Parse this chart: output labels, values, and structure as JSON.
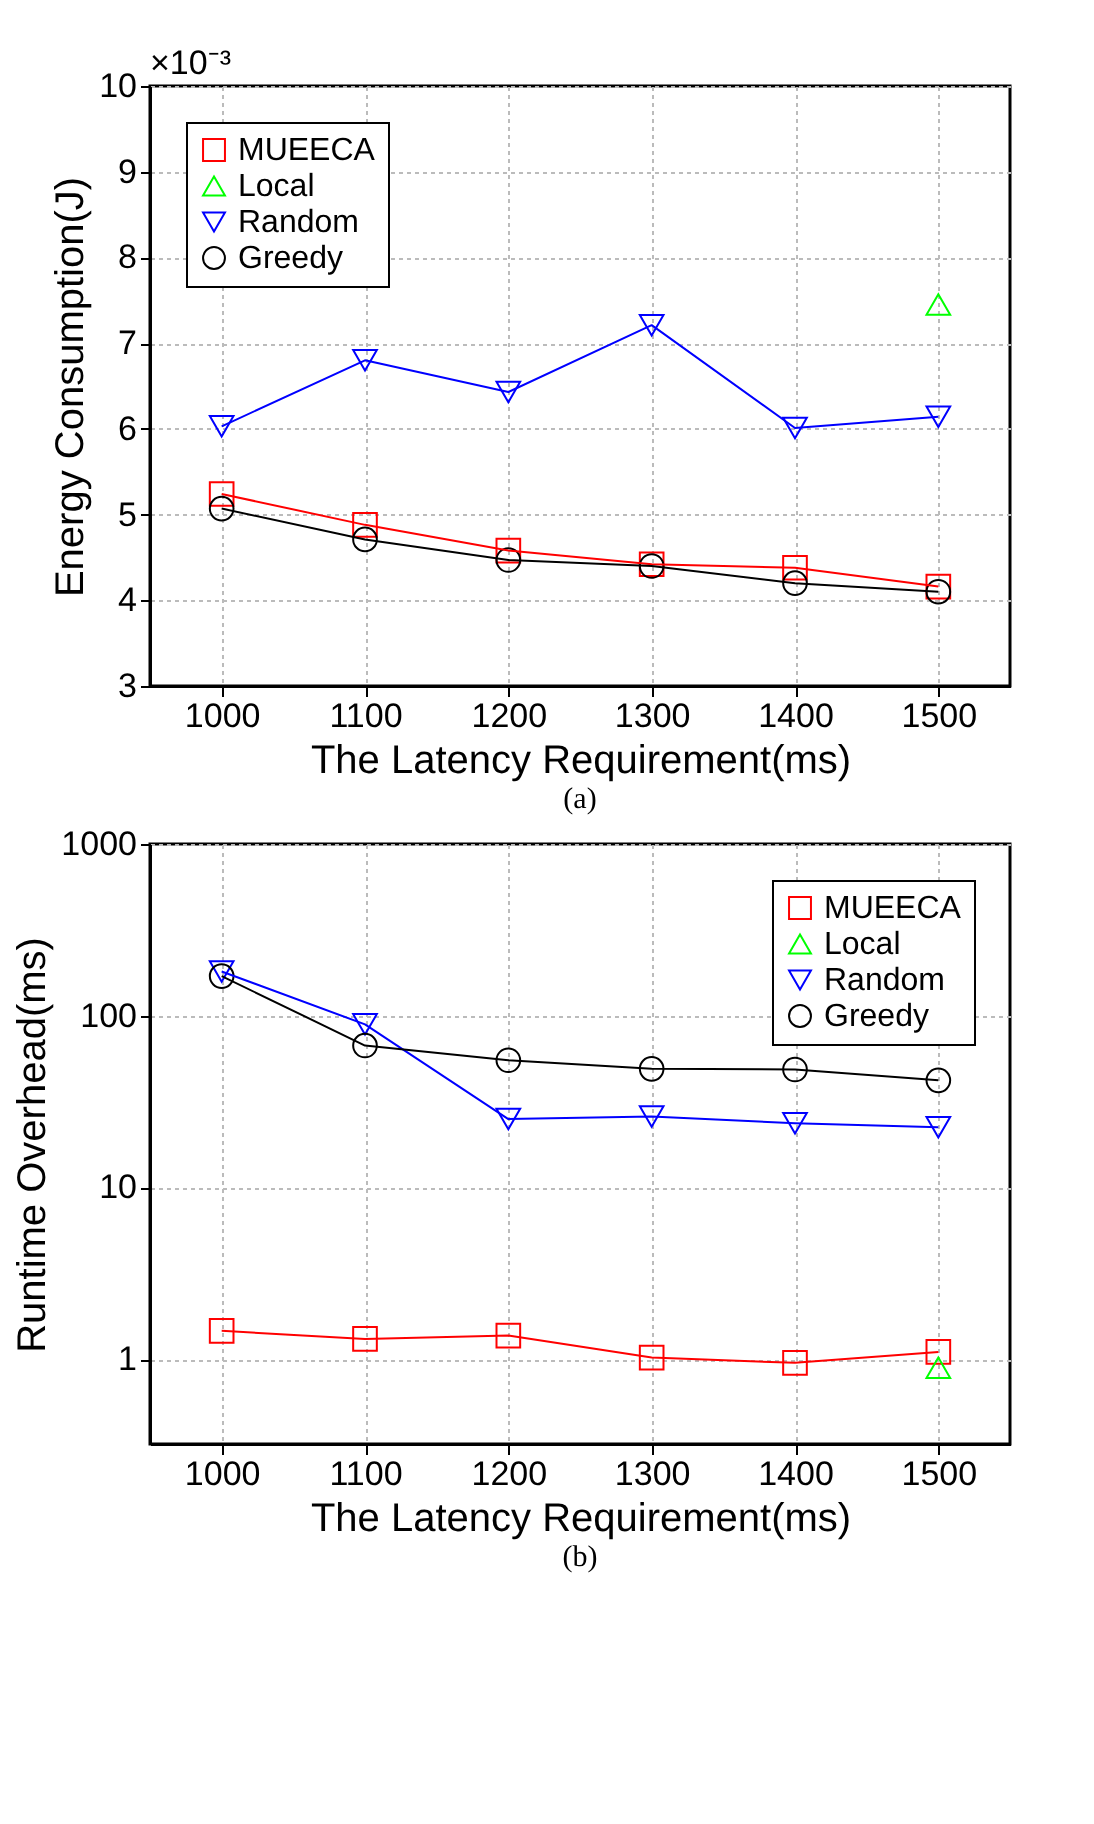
{
  "chart_data": [
    {
      "type": "line",
      "xlabel": "The Latency Requirement(ms)",
      "ylabel": "Energy Consumption(J)",
      "annotations": [
        "×10⁻³",
        "(a)"
      ],
      "x": [
        1000,
        1100,
        1200,
        1300,
        1400,
        1500
      ],
      "xlim": [
        950,
        1550
      ],
      "xticks": [
        1000,
        1100,
        1200,
        1300,
        1400,
        1500
      ],
      "ylim": [
        3,
        10
      ],
      "yticks": [
        3,
        4,
        5,
        6,
        7,
        8,
        9,
        10
      ],
      "grid": true,
      "legend": "top left",
      "line_style": "solid",
      "series": [
        {
          "name": "MUEECA",
          "color": "#ff0000",
          "marker": "square",
          "values": [
            5.24,
            4.88,
            4.58,
            4.42,
            4.38,
            4.16
          ]
        },
        {
          "name": "Local",
          "color": "#00ff00",
          "marker": "triangle",
          "values": [
            null,
            null,
            null,
            null,
            null,
            7.45
          ]
        },
        {
          "name": "Random",
          "color": "#0000ff",
          "marker": "triangle-down",
          "values": [
            6.03,
            6.8,
            6.43,
            7.21,
            6.01,
            6.14
          ]
        },
        {
          "name": "Greedy",
          "color": "#000000",
          "marker": "circle",
          "values": [
            5.07,
            4.71,
            4.47,
            4.4,
            4.2,
            4.1
          ]
        }
      ]
    },
    {
      "type": "line",
      "xlabel": "The Latency Requirement(ms)",
      "ylabel": "Runtime Overhead(ms)",
      "annotations": [
        "(b)"
      ],
      "x": [
        1000,
        1100,
        1200,
        1300,
        1400,
        1500
      ],
      "xlim": [
        950,
        1550
      ],
      "xticks": [
        1000,
        1100,
        1200,
        1300,
        1400,
        1500
      ],
      "ylim": [
        0.32,
        1000
      ],
      "yticks": [
        1,
        10,
        100,
        1000
      ],
      "log": true,
      "grid": true,
      "legend": "top right",
      "line_style": "solid",
      "series": [
        {
          "name": "MUEECA",
          "color": "#ff0000",
          "marker": "square",
          "values": [
            1.46,
            1.31,
            1.37,
            1.02,
            0.95,
            1.1
          ]
        },
        {
          "name": "Local",
          "color": "#00ff00",
          "marker": "triangle",
          "values": [
            null,
            null,
            null,
            null,
            null,
            0.89
          ]
        },
        {
          "name": "Random",
          "color": "#0000ff",
          "marker": "triangle-down",
          "values": [
            181,
            89,
            25,
            25.9,
            23.6,
            22.4
          ]
        },
        {
          "name": "Greedy",
          "color": "#000000",
          "marker": "circle",
          "values": [
            170,
            67,
            55,
            49,
            48.6,
            42
          ]
        }
      ]
    }
  ]
}
